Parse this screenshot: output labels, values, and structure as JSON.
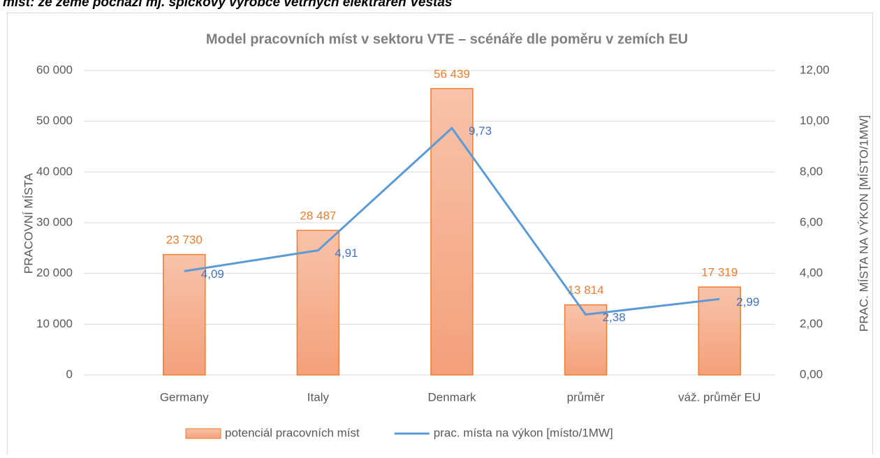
{
  "heading": "míst: že země pochází mj. špičkový výrobce větrných elektráren Vestas",
  "chart_data": {
    "type": "bar-line",
    "title": "Model pracovních míst v sektoru VTE – scénáře dle poměru v zemích EU",
    "y_label": "PRACOVNÍ MÍSTA",
    "y2_label": "PRAC. MÍSTA NA VÝKON [MÍSTO/1MW]",
    "categories": [
      "Germany",
      "Italy",
      "Denmark",
      "průměr",
      "váž. průměr EU"
    ],
    "series": [
      {
        "name": "potenciál pracovních míst",
        "type": "bar",
        "color": "#ed7d31",
        "values": [
          23730,
          28487,
          56439,
          13814,
          17319
        ],
        "value_labels": [
          "23 730",
          "28 487",
          "56 439",
          "13 814",
          "17 319"
        ]
      },
      {
        "name": "prac. místa na výkon [místo/1MW]",
        "type": "line",
        "axis": "y2",
        "color": "#5b9bd5",
        "label_color": "#4472c4",
        "values": [
          4.09,
          4.91,
          9.73,
          2.38,
          2.99
        ],
        "value_labels": [
          "4,09",
          "4,91",
          "9,73",
          "2,38",
          "2,99"
        ]
      }
    ],
    "ylim": [
      0,
      60000
    ],
    "yticks": [
      0,
      {
        "value": 10000,
        "label": "10 000"
      },
      {
        "value": 20000,
        "label": "20 000"
      },
      {
        "value": 30000,
        "label": "30 000"
      },
      {
        "value": 40000,
        "label": "40 000"
      },
      {
        "value": 50000,
        "label": "50 000"
      },
      {
        "value": 60000,
        "label": "60 000"
      }
    ],
    "y2lim": [
      0,
      12
    ],
    "y2ticks": [
      {
        "value": 0,
        "label": "0,00"
      },
      {
        "value": 2,
        "label": "2,00"
      },
      {
        "value": 4,
        "label": "4,00"
      },
      {
        "value": 6,
        "label": "6,00"
      },
      {
        "value": 8,
        "label": "8,00"
      },
      {
        "value": 10,
        "label": "10,00"
      },
      {
        "value": 12,
        "label": "12,00"
      }
    ],
    "grid": true,
    "legend": "bottom"
  }
}
